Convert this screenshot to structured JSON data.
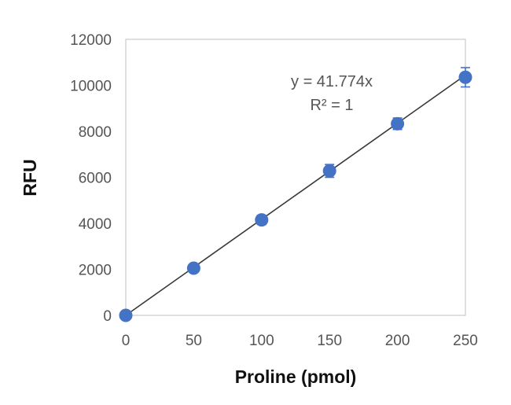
{
  "chart_data": {
    "type": "scatter",
    "xlabel": "Proline (pmol)",
    "ylabel": "RFU",
    "xlim": [
      0,
      250
    ],
    "ylim": [
      0,
      12000
    ],
    "x_ticks": [
      "0",
      "50",
      "100",
      "150",
      "200",
      "250"
    ],
    "y_ticks": [
      "0",
      "2000",
      "4000",
      "6000",
      "8000",
      "10000",
      "12000"
    ],
    "grid": false,
    "legend": "none",
    "series": [
      {
        "x": [
          0,
          50,
          100,
          150,
          200,
          250
        ],
        "y": [
          0,
          2050,
          4150,
          6280,
          8330,
          10350
        ],
        "error": [
          0,
          150,
          200,
          280,
          250,
          420
        ],
        "color": "#4472c4"
      }
    ],
    "trendline": {
      "slope": 41.774,
      "color": "#3a3a3a",
      "equation": "y = 41.774x",
      "r_squared": "R² = 1"
    }
  }
}
